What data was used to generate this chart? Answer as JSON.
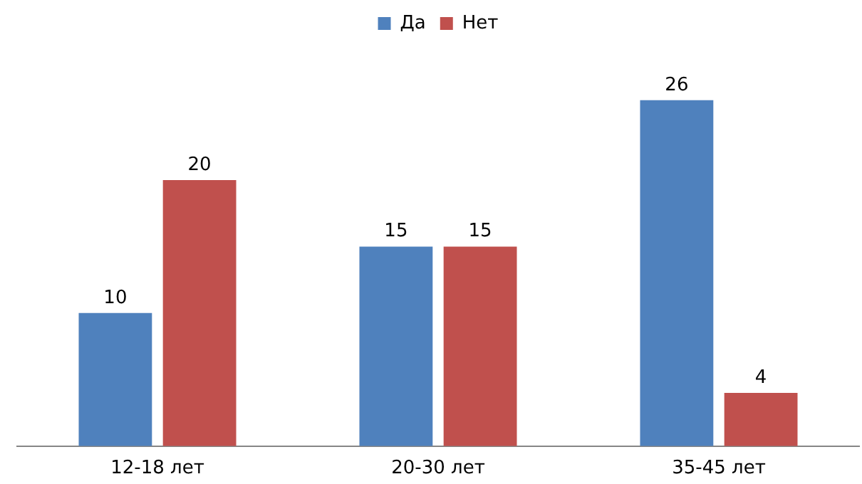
{
  "chart_data": {
    "type": "bar",
    "categories": [
      "12-18 лет",
      "20-30 лет",
      "35-45 лет"
    ],
    "series": [
      {
        "name": "Да",
        "color": "#4f81bd",
        "values": [
          10,
          15,
          26
        ]
      },
      {
        "name": "Нет",
        "color": "#c0504d",
        "values": [
          20,
          15,
          4
        ]
      }
    ],
    "data_labels": true,
    "legend": "top",
    "grid": false
  }
}
